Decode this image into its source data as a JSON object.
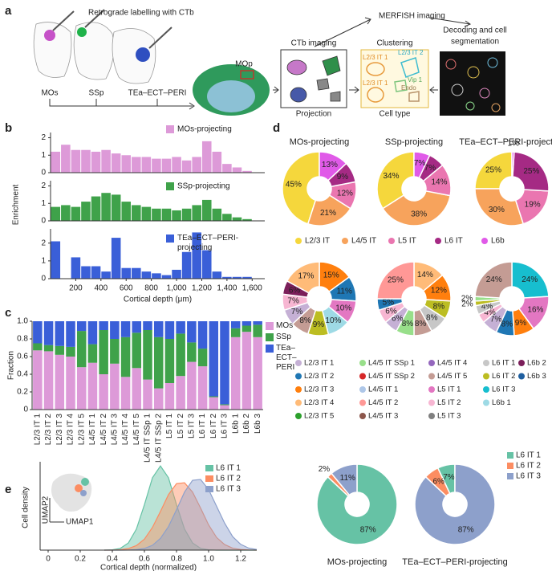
{
  "panel_labels": [
    "a",
    "b",
    "c",
    "d",
    "e"
  ],
  "diagram": {
    "title": "Retrograde labelling with CTb",
    "injection_sites": [
      "MOs",
      "SSp",
      "TEa–ECT–PERI"
    ],
    "target": "MOp",
    "merfish": "MERFISH imaging",
    "ctb": {
      "title": "CTb imaging",
      "caption": "Projection"
    },
    "clustering": {
      "title": "Clustering",
      "caption": "Cell type",
      "labels": [
        "L2/3 IT 1",
        "L2/3 IT 2",
        "Vip 1",
        "L2/3 IT 1",
        "Endo"
      ]
    },
    "decoding": [
      "Decoding and cell",
      "segmentation"
    ]
  },
  "chart_data": [
    {
      "type": "histogram",
      "bins": [
        0,
        80,
        160,
        240,
        320,
        400,
        480,
        560,
        640,
        720,
        800,
        880,
        960,
        1040,
        1120,
        1200,
        1280,
        1360,
        1440,
        1520,
        1600,
        1680
      ],
      "xlim": [
        0,
        1700
      ],
      "series": [
        {
          "name": "MOs-projecting",
          "color": "#dd9ad8",
          "values": [
            1.2,
            1.6,
            1.3,
            1.3,
            1.2,
            1.3,
            1.1,
            1.0,
            0.9,
            0.9,
            0.8,
            0.8,
            0.9,
            0.7,
            0.9,
            1.8,
            1.2,
            0.5,
            0.3,
            0.1,
            0
          ]
        }
      ],
      "ylim": [
        0,
        2.3
      ],
      "yticks": [
        0,
        1,
        2
      ]
    },
    {
      "type": "histogram",
      "ylabel": "Enrichment",
      "bins": [
        0,
        80,
        160,
        240,
        320,
        400,
        480,
        560,
        640,
        720,
        800,
        880,
        960,
        1040,
        1120,
        1200,
        1280,
        1360,
        1440,
        1520,
        1600,
        1680
      ],
      "xlim": [
        0,
        1700
      ],
      "series": [
        {
          "name": "SSp-projecting",
          "color": "#3fa24a",
          "values": [
            0.8,
            0.9,
            0.8,
            1.1,
            1.4,
            1.6,
            1.5,
            1.1,
            0.9,
            0.8,
            0.7,
            0.7,
            0.6,
            0.7,
            0.9,
            1.2,
            0.7,
            0.4,
            0.2,
            0.1,
            0
          ]
        }
      ],
      "ylim": [
        0,
        2.3
      ],
      "yticks": [
        0,
        1,
        2
      ]
    },
    {
      "type": "histogram",
      "xlabel": "Cortical depth (μm)",
      "bins": [
        0,
        80,
        160,
        240,
        320,
        400,
        480,
        560,
        640,
        720,
        800,
        880,
        960,
        1040,
        1120,
        1200,
        1280,
        1360,
        1440,
        1520,
        1600,
        1680
      ],
      "xlim": [
        0,
        1700
      ],
      "xticks": [
        200,
        400,
        600,
        800,
        {
          "value": 1000,
          "label": "1,000"
        },
        {
          "value": 1200,
          "label": "1,200"
        },
        {
          "value": 1400,
          "label": "1,400"
        },
        {
          "value": 1600,
          "label": "1,600"
        }
      ],
      "series": [
        {
          "name": "TEa–ECT–PERI-projecting",
          "color": "#3a5fd8",
          "values": [
            2.1,
            0,
            1.2,
            0.7,
            0.7,
            0.4,
            2.3,
            0.6,
            0.6,
            0.4,
            0.3,
            0.2,
            0.5,
            1.5,
            2.6,
            1.6,
            0.4,
            0.1,
            0.1,
            0.1,
            0
          ]
        }
      ],
      "ylim": [
        0,
        2.8
      ],
      "yticks": [
        0,
        1,
        2
      ]
    },
    {
      "type": "stacked_bar",
      "ylabel": "Fraction",
      "categories": [
        "L2/3 IT 1",
        "L2/3 IT 2",
        "L2/3 IT 3",
        "L2/3 IT 4",
        "L2/3 IT 5",
        "L4/5 IT 1",
        "L4/5 IT 2",
        "L4/5 IT 3",
        "L4/5 IT 4",
        "L4/5 IT 5",
        "L4/5 IT SSp 1",
        "L4/5 IT SSp 2",
        "L5 IT 1",
        "L5 IT 2",
        "L5 IT 3",
        "L6 IT 1",
        "L6 IT 2",
        "L6 IT 3",
        "L6b 1",
        "L6b 2",
        "L6b 3"
      ],
      "series": [
        {
          "name": "MOs",
          "color": "#dd9ad8",
          "values": [
            0.67,
            0.66,
            0.62,
            0.6,
            0.48,
            0.53,
            0.4,
            0.52,
            0.37,
            0.47,
            0.34,
            0.24,
            0.3,
            0.38,
            0.54,
            0.49,
            0.14,
            0.05,
            0.82,
            0.88,
            0.82
          ]
        },
        {
          "name": "SSp",
          "color": "#3fa24a",
          "values": [
            0.08,
            0.07,
            0.1,
            0.11,
            0.41,
            0.21,
            0.5,
            0.28,
            0.45,
            0.4,
            0.56,
            0.58,
            0.5,
            0.48,
            0.22,
            0.2,
            0.01,
            0.01,
            0.1,
            0.07,
            0.14
          ]
        },
        {
          "name": "TEa–ECT–PERI",
          "color": "#3a5fd8",
          "values": [
            0.25,
            0.27,
            0.28,
            0.29,
            0.11,
            0.26,
            0.1,
            0.2,
            0.18,
            0.13,
            0.1,
            0.18,
            0.2,
            0.14,
            0.24,
            0.31,
            0.85,
            0.94,
            0.08,
            0.05,
            0.04
          ]
        }
      ],
      "ylim": [
        0,
        1
      ],
      "yticks": [
        0,
        0.2,
        0.4,
        0.6,
        0.8,
        {
          "value": 1,
          "label": "1.0"
        }
      ]
    },
    {
      "type": "pie",
      "title": "MOs-projecting",
      "direction": "counterclockwise",
      "values": [
        45,
        21,
        12,
        9,
        13
      ],
      "value_labels": [
        "45%",
        "21%",
        "12%",
        "9%",
        "13%"
      ],
      "colors": [
        "#f5d73c",
        "#f7a35c",
        "#ea76b0",
        "#a52a84",
        "#e05ae8"
      ]
    },
    {
      "type": "pie",
      "title": "SSp-projecting",
      "direction": "counterclockwise",
      "values": [
        34,
        38,
        14,
        7,
        7
      ],
      "value_labels": [
        "34%",
        "38%",
        "14%",
        "7%",
        "7%"
      ],
      "colors": [
        "#f5d73c",
        "#f7a35c",
        "#ea76b0",
        "#a52a84",
        "#e05ae8"
      ]
    },
    {
      "type": "pie",
      "title": "TEa–ECT–PERI-projecting",
      "direction": "counterclockwise",
      "values": [
        25,
        30,
        19,
        25,
        1
      ],
      "value_labels": [
        "25%",
        "30%",
        "19%",
        "25%",
        "1%"
      ],
      "colors": [
        "#f5d73c",
        "#f7a35c",
        "#ea76b0",
        "#a52a84",
        "#e05ae8"
      ]
    },
    {
      "type": "pie",
      "direction": "clockwise",
      "values": [
        15,
        11,
        10,
        10,
        9,
        8,
        7,
        7,
        6,
        17
      ],
      "value_labels": [
        "15%",
        "11%",
        "10%",
        "10%",
        "9%",
        "8%",
        "7%",
        "7%",
        "6%",
        "17%"
      ],
      "colors": [
        "#ff7f0e",
        "#1f77b4",
        "#e377c2",
        "#9edae5",
        "#bcbd22",
        "#c49c94",
        "#c5b0d5",
        "#f7b6d2",
        "#7b1f5a",
        "#ffbb78"
      ]
    },
    {
      "type": "pie",
      "direction": "clockwise",
      "values": [
        14,
        12,
        8,
        8,
        8,
        8,
        6,
        6,
        5,
        25
      ],
      "value_labels": [
        "14%",
        "12%",
        "8%",
        "8%",
        "8%",
        "8%",
        "6%",
        "6%",
        "5%",
        "25%"
      ],
      "colors": [
        "#ffbb78",
        "#ff7f0e",
        "#bcbd22",
        "#c7c7c7",
        "#c49c94",
        "#98df8a",
        "#c5b0d5",
        "#f7b6d2",
        "#1f77b4",
        "#ff9896"
      ]
    },
    {
      "type": "pie",
      "direction": "clockwise",
      "values": [
        24,
        16,
        9,
        8,
        7,
        4,
        4,
        2,
        2,
        24
      ],
      "value_labels": [
        "24%",
        "16%",
        "9%",
        "8%",
        "7%",
        "4%",
        "4%",
        "2%",
        "2%",
        "24%"
      ],
      "colors": [
        "#17becf",
        "#e377c2",
        "#ff7f0e",
        "#1f77b4",
        "#c5b0d5",
        "#f7b6d2",
        "#c7c7c7",
        "#bcbd22",
        "#98df8a",
        "#c49c94"
      ]
    },
    {
      "type": "line",
      "xlabel": "Cortical depth (normalized)",
      "ylabel": "Cell density",
      "annotations": [
        "UMAP1",
        "UMAP2"
      ],
      "x": [
        0.35,
        0.4,
        0.45,
        0.5,
        0.55,
        0.6,
        0.65,
        0.7,
        0.75,
        0.8,
        0.85,
        0.9,
        0.95,
        1.0,
        1.05,
        1.1,
        1.15,
        1.2,
        1.25,
        1.3
      ],
      "series": [
        {
          "name": "L6 IT 1",
          "color": "#66c2a5",
          "values": [
            0,
            0.004,
            0.021,
            0.085,
            0.25,
            0.54,
            0.86,
            1.0,
            0.86,
            0.54,
            0.25,
            0.085,
            0.021,
            0.004,
            0,
            0,
            0,
            0,
            0,
            0
          ]
        },
        {
          "name": "L6 IT 2",
          "color": "#fc8d62",
          "values": [
            0,
            0,
            0.005,
            0.019,
            0.054,
            0.13,
            0.27,
            0.46,
            0.66,
            0.79,
            0.8,
            0.69,
            0.5,
            0.3,
            0.15,
            0.066,
            0.023,
            0.007,
            0.002,
            0
          ]
        },
        {
          "name": "L6 IT 3",
          "color": "#8da0cb",
          "values": [
            0,
            0,
            0,
            0.001,
            0.006,
            0.02,
            0.057,
            0.14,
            0.28,
            0.48,
            0.69,
            0.83,
            0.84,
            0.72,
            0.52,
            0.32,
            0.16,
            0.069,
            0.024,
            0.007
          ]
        }
      ],
      "xlim": [
        -0.05,
        1.3
      ],
      "ylim": [
        0,
        1.05
      ],
      "xticks": [
        0,
        0.2,
        0.4,
        0.6,
        0.8,
        {
          "value": 1,
          "label": "1.0"
        },
        1.2
      ]
    },
    {
      "type": "pie",
      "title": "MOs-projecting",
      "direction": "clockwise",
      "values": [
        87,
        2,
        11
      ],
      "value_labels": [
        "87%",
        "2%",
        "11%"
      ],
      "colors": [
        "#66c2a5",
        "#fc8d62",
        "#8da0cb"
      ]
    },
    {
      "type": "pie",
      "title": "TEa–ECT–PERI-projecting",
      "direction": "counterclockwise",
      "categories": [
        "L6 IT 1",
        "L6 IT 2",
        "L6 IT 3"
      ],
      "values": [
        7,
        6,
        87
      ],
      "value_labels": [
        "7%",
        "6%",
        "87%"
      ],
      "colors": [
        "#66c2a5",
        "#fc8d62",
        "#8da0cb"
      ]
    }
  ],
  "legends": [
    {
      "items": [
        {
          "name": "L2/3 IT",
          "color": "#f5d73c"
        },
        {
          "name": "L4/5 IT",
          "color": "#f7a35c"
        },
        {
          "name": "L5 IT",
          "color": "#ea76b0"
        },
        {
          "name": "L6 IT",
          "color": "#a52a84"
        },
        {
          "name": "L6b",
          "color": "#e05ae8"
        }
      ]
    },
    {
      "items": [
        {
          "name": "L2/3 IT 1",
          "color": "#c5b0d5"
        },
        {
          "name": "L2/3 IT 2",
          "color": "#1f77b4"
        },
        {
          "name": "L2/3 IT 3",
          "color": "#ff7f0e"
        },
        {
          "name": "L2/3 IT 4",
          "color": "#ffbb78"
        },
        {
          "name": "L2/3 IT 5",
          "color": "#2ca02c"
        },
        {
          "name": "L4/5 IT SSp 1",
          "color": "#98df8a"
        },
        {
          "name": "L4/5 IT SSp 2",
          "color": "#d62728"
        },
        {
          "name": "L4/5 IT 1",
          "color": "#aec7e8"
        },
        {
          "name": "L4/5 IT 2",
          "color": "#ff9896"
        },
        {
          "name": "L4/5 IT 3",
          "color": "#8c564b"
        },
        {
          "name": "L4/5 IT 4",
          "color": "#9467bd"
        },
        {
          "name": "L4/5 IT 5",
          "color": "#c49c94"
        },
        {
          "name": "L5 IT 1",
          "color": "#e377c2"
        },
        {
          "name": "L5 IT 2",
          "color": "#f7b6d2"
        },
        {
          "name": "L5 IT 3",
          "color": "#7f7f7f"
        },
        {
          "name": "L6 IT 1",
          "color": "#c7c7c7"
        },
        {
          "name": "L6 IT 2",
          "color": "#bcbd22"
        },
        {
          "name": "L6 IT 3",
          "color": "#17becf"
        },
        {
          "name": "L6b 1",
          "color": "#9edae5"
        },
        {
          "name": "L6b 2",
          "color": "#7b1f5a"
        },
        {
          "name": "L6b 3",
          "color": "#1f5fa0"
        }
      ]
    }
  ]
}
